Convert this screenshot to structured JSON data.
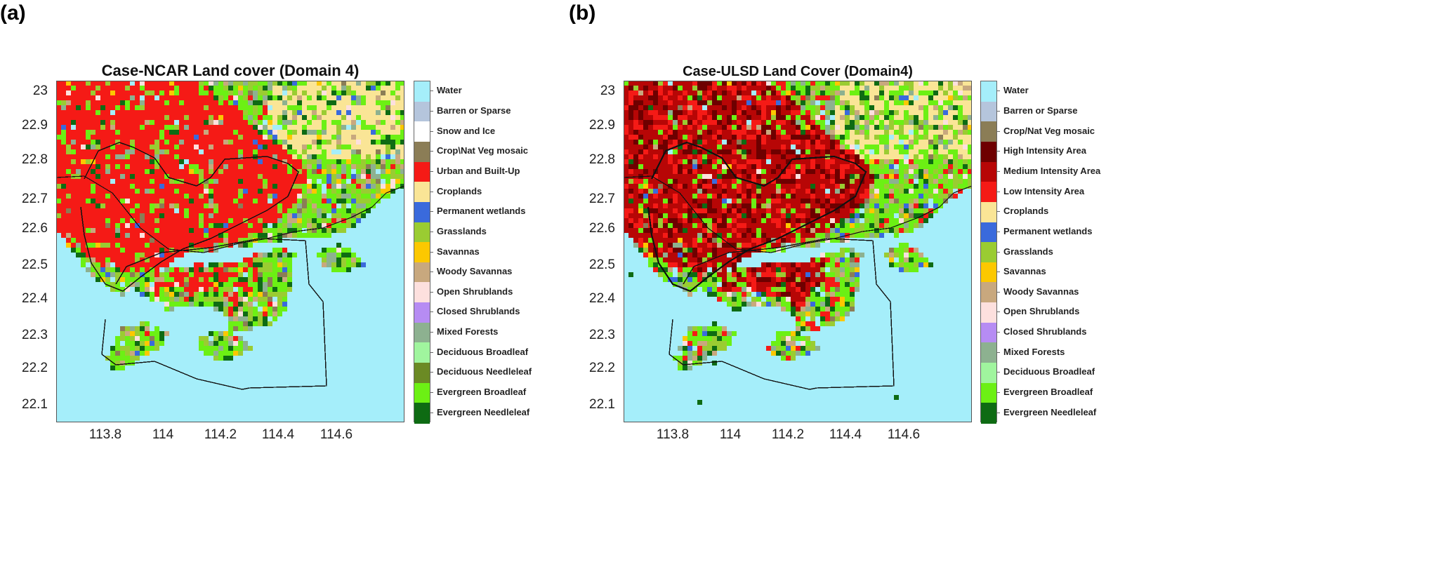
{
  "panels": [
    {
      "tag": "(a)",
      "title": "Case-NCAR Land cover (Domain 4)",
      "y_ticks": [
        "23",
        "22.9",
        "22.8",
        "22.7",
        "22.6",
        "22.5",
        "22.4",
        "22.3",
        "22.2",
        "22.1"
      ],
      "x_ticks": [
        "113.8",
        "114",
        "114.2",
        "114.4",
        "114.6"
      ],
      "legend": [
        {
          "label": "Water",
          "color": "#a5eefa"
        },
        {
          "label": "Barren or Sparse",
          "color": "#b5c5dc"
        },
        {
          "label": "Snow and Ice",
          "color": "#ffffff"
        },
        {
          "label": "Crop\\Nat Veg mosaic",
          "color": "#8b7d56"
        },
        {
          "label": "Urban and Built-Up",
          "color": "#f51a16"
        },
        {
          "label": "Croplands",
          "color": "#fae596"
        },
        {
          "label": "Permanent wetlands",
          "color": "#3a6adc"
        },
        {
          "label": "Grasslands",
          "color": "#9acc32"
        },
        {
          "label": "Savannas",
          "color": "#fcc800"
        },
        {
          "label": "Woody Savannas",
          "color": "#c8a87e"
        },
        {
          "label": "Open Shrublands",
          "color": "#fde0de"
        },
        {
          "label": "Closed Shrublands",
          "color": "#b68cf3"
        },
        {
          "label": "Mixed Forests",
          "color": "#8db190"
        },
        {
          "label": "Deciduous Broadleaf",
          "color": "#a0f59e"
        },
        {
          "label": "Deciduous Needleleaf",
          "color": "#6b8a24"
        },
        {
          "label": "Evergreen Broadleaf",
          "color": "#6cf014"
        },
        {
          "label": "Evergreen Needleleaf",
          "color": "#0e6b13"
        }
      ]
    },
    {
      "tag": "(b)",
      "title": "Case-ULSD Land Cover (Domain4)",
      "y_ticks": [
        "23",
        "22.9",
        "22.8",
        "22.7",
        "22.6",
        "22.5",
        "22.4",
        "22.3",
        "22.2",
        "22.1"
      ],
      "x_ticks": [
        "113.8",
        "114",
        "114.2",
        "114.4",
        "114.6"
      ],
      "legend": [
        {
          "label": "Water",
          "color": "#a5eefa"
        },
        {
          "label": "Barren or Sparse",
          "color": "#b5c5dc"
        },
        {
          "label": "Crop/Nat Veg mosaic",
          "color": "#8b7d56"
        },
        {
          "label": "High Intensity Area",
          "color": "#6e0000"
        },
        {
          "label": "Medium Intensity Area",
          "color": "#b70606"
        },
        {
          "label": "Low Intensity Area",
          "color": "#f51a16"
        },
        {
          "label": "Croplands",
          "color": "#fae596"
        },
        {
          "label": "Permanent wetlands",
          "color": "#3a6adc"
        },
        {
          "label": "Grasslands",
          "color": "#9acc32"
        },
        {
          "label": "Savannas",
          "color": "#fcc800"
        },
        {
          "label": "Woody Savannas",
          "color": "#c8a87e"
        },
        {
          "label": "Open Shrublands",
          "color": "#fde0de"
        },
        {
          "label": "Closed Shrublands",
          "color": "#b68cf3"
        },
        {
          "label": "Mixed Forests",
          "color": "#8db190"
        },
        {
          "label": "Deciduous Broadleaf",
          "color": "#a0f59e"
        },
        {
          "label": "Evergreen Broadleaf",
          "color": "#6cf014"
        },
        {
          "label": "Evergreen Needleleaf",
          "color": "#0e6b13"
        }
      ]
    }
  ]
}
